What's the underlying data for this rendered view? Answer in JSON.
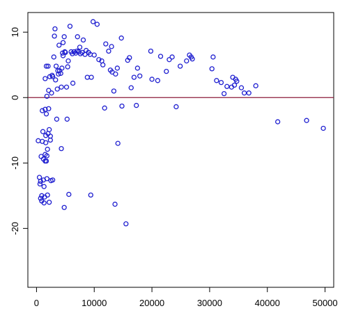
{
  "chart_data": {
    "type": "scatter",
    "title": "",
    "xlabel": "",
    "ylabel": "",
    "xlim": [
      -1500,
      51500
    ],
    "ylim": [
      -29,
      13
    ],
    "x_ticks": [
      0,
      10000,
      20000,
      30000,
      40000,
      50000
    ],
    "x_tick_labels": [
      "0",
      "10000",
      "20000",
      "30000",
      "40000",
      "50000"
    ],
    "y_ticks": [
      -20,
      -10,
      0,
      10
    ],
    "y_tick_labels": [
      "-20",
      "-10",
      "0",
      "10"
    ],
    "grid": false,
    "legend": "none",
    "reference_line": {
      "y": 0,
      "color": "#8b1a3a"
    },
    "point_color": "#1f1fd0",
    "axis_color": "#000000",
    "series": [
      {
        "points": [
          [
            300,
            -6.6
          ],
          [
            500,
            -12.2
          ],
          [
            600,
            -13.2
          ],
          [
            700,
            -12.8
          ],
          [
            700,
            -15.4
          ],
          [
            800,
            -9.0
          ],
          [
            900,
            -15.0
          ],
          [
            900,
            -15.8
          ],
          [
            1000,
            -6.7
          ],
          [
            1000,
            -2.0
          ],
          [
            1100,
            -5.2
          ],
          [
            1200,
            -9.4
          ],
          [
            1200,
            -12.6
          ],
          [
            1300,
            -13.6
          ],
          [
            1300,
            -16.1
          ],
          [
            1400,
            -15.2
          ],
          [
            1500,
            -9.7
          ],
          [
            1500,
            2.9
          ],
          [
            1500,
            -1.8
          ],
          [
            1500,
            -8.7
          ],
          [
            1600,
            -5.8
          ],
          [
            1600,
            -6.9
          ],
          [
            1700,
            -2.5
          ],
          [
            1700,
            -9.7
          ],
          [
            1700,
            4.8
          ],
          [
            1800,
            0.2
          ],
          [
            1800,
            -12.4
          ],
          [
            1800,
            -8.9
          ],
          [
            1900,
            -14.9
          ],
          [
            1900,
            -7.9
          ],
          [
            2000,
            4.8
          ],
          [
            2000,
            -5.5
          ],
          [
            2100,
            1.1
          ],
          [
            2100,
            -1.7
          ],
          [
            2200,
            -16.0
          ],
          [
            2200,
            -4.9
          ],
          [
            2300,
            3.2
          ],
          [
            2400,
            -5.9
          ],
          [
            2400,
            -6.5
          ],
          [
            2500,
            -12.7
          ],
          [
            2600,
            0.7
          ],
          [
            2700,
            3.4
          ],
          [
            2800,
            -12.6
          ],
          [
            2800,
            3.2
          ],
          [
            3000,
            6.2
          ],
          [
            3100,
            9.4
          ],
          [
            3200,
            10.5
          ],
          [
            3300,
            2.7
          ],
          [
            3400,
            4.8
          ],
          [
            3500,
            -3.3
          ],
          [
            3600,
            1.3
          ],
          [
            3700,
            4.1
          ],
          [
            3800,
            3.6
          ],
          [
            3900,
            8.0
          ],
          [
            4000,
            4.1
          ],
          [
            4200,
            3.7
          ],
          [
            4300,
            1.6
          ],
          [
            4300,
            -7.8
          ],
          [
            4400,
            4.5
          ],
          [
            4500,
            6.8
          ],
          [
            4600,
            8.4
          ],
          [
            4600,
            6.4
          ],
          [
            4800,
            9.3
          ],
          [
            4800,
            -16.8
          ],
          [
            4900,
            7.0
          ],
          [
            5000,
            6.9
          ],
          [
            5200,
            1.6
          ],
          [
            5300,
            -3.3
          ],
          [
            5400,
            4.7
          ],
          [
            5500,
            5.6
          ],
          [
            5600,
            -14.8
          ],
          [
            5800,
            10.9
          ],
          [
            6000,
            7.0
          ],
          [
            6200,
            6.7
          ],
          [
            6300,
            2.2
          ],
          [
            6500,
            7.0
          ],
          [
            6800,
            6.8
          ],
          [
            7000,
            7.1
          ],
          [
            7100,
            9.3
          ],
          [
            7300,
            7.0
          ],
          [
            7500,
            7.7
          ],
          [
            7600,
            6.7
          ],
          [
            7900,
            6.9
          ],
          [
            8100,
            8.8
          ],
          [
            8400,
            6.6
          ],
          [
            8600,
            7.2
          ],
          [
            8800,
            3.1
          ],
          [
            9000,
            6.9
          ],
          [
            9300,
            6.6
          ],
          [
            9400,
            -14.9
          ],
          [
            9500,
            3.1
          ],
          [
            9800,
            11.6
          ],
          [
            10000,
            6.5
          ],
          [
            10500,
            11.2
          ],
          [
            10800,
            5.8
          ],
          [
            11300,
            5.6
          ],
          [
            11500,
            5.0
          ],
          [
            11800,
            -1.6
          ],
          [
            12000,
            8.2
          ],
          [
            12500,
            7.1
          ],
          [
            12800,
            4.2
          ],
          [
            13000,
            7.8
          ],
          [
            13100,
            3.9
          ],
          [
            13400,
            1.0
          ],
          [
            13600,
            -16.3
          ],
          [
            13700,
            3.6
          ],
          [
            14000,
            4.5
          ],
          [
            14100,
            -7.0
          ],
          [
            14700,
            9.1
          ],
          [
            14800,
            -1.3
          ],
          [
            15500,
            -19.3
          ],
          [
            15800,
            5.7
          ],
          [
            16100,
            6.1
          ],
          [
            16400,
            1.5
          ],
          [
            16900,
            3.1
          ],
          [
            17300,
            -1.2
          ],
          [
            17500,
            4.5
          ],
          [
            17900,
            3.3
          ],
          [
            19800,
            7.1
          ],
          [
            20000,
            2.8
          ],
          [
            21000,
            2.6
          ],
          [
            21500,
            6.3
          ],
          [
            22500,
            4.0
          ],
          [
            23000,
            5.8
          ],
          [
            23500,
            6.2
          ],
          [
            24200,
            -1.4
          ],
          [
            24900,
            4.8
          ],
          [
            26000,
            5.6
          ],
          [
            26500,
            6.5
          ],
          [
            26800,
            6.2
          ],
          [
            27000,
            5.9
          ],
          [
            30400,
            4.4
          ],
          [
            30600,
            6.2
          ],
          [
            31200,
            2.6
          ],
          [
            32000,
            2.3
          ],
          [
            32500,
            0.6
          ],
          [
            33000,
            1.7
          ],
          [
            33800,
            1.6
          ],
          [
            34000,
            3.1
          ],
          [
            34300,
            1.9
          ],
          [
            34500,
            2.8
          ],
          [
            34700,
            2.5
          ],
          [
            35500,
            1.5
          ],
          [
            36000,
            0.7
          ],
          [
            36800,
            0.7
          ],
          [
            38000,
            1.8
          ],
          [
            41800,
            -3.7
          ],
          [
            46800,
            -3.5
          ],
          [
            49700,
            -4.7
          ]
        ]
      }
    ]
  }
}
